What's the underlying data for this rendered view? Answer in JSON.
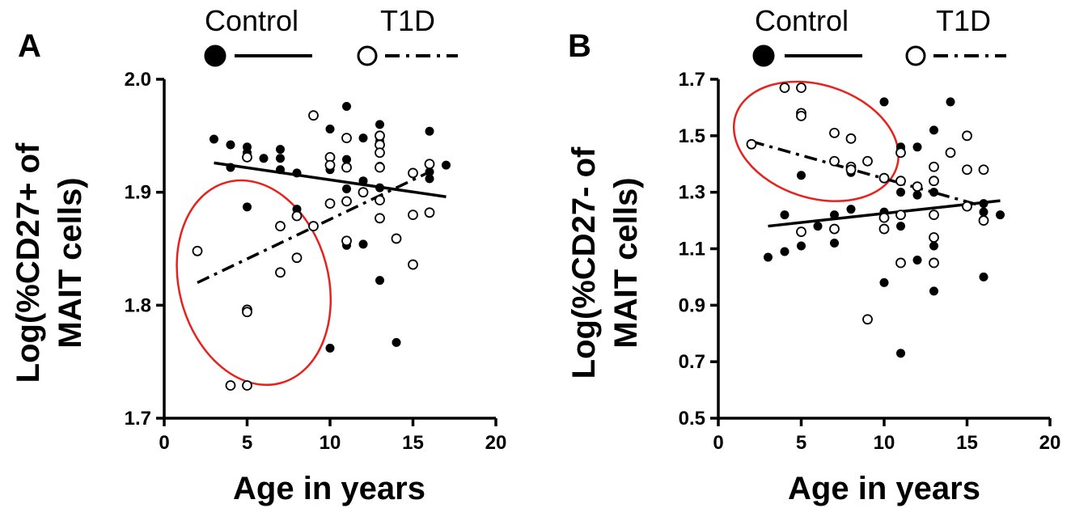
{
  "chart_data": [
    {
      "type": "scatter",
      "panel_label": "A",
      "xlabel": "Age in years",
      "ylabel_lines": [
        "Log(%CD27+ of",
        "MAIT cells)"
      ],
      "xlim": [
        0,
        20
      ],
      "ylim": [
        1.7,
        2.0
      ],
      "x_ticks": [
        "0",
        "5",
        "10",
        "15",
        "20"
      ],
      "y_ticks": [
        "1.7",
        "1.8",
        "1.9",
        "2.0"
      ],
      "legend": [
        {
          "name": "Control",
          "marker": "filled",
          "line": "solid"
        },
        {
          "name": "T1D",
          "marker": "open",
          "line": "dash-dot"
        }
      ],
      "series": [
        {
          "name": "Control",
          "marker": "filled",
          "points": [
            [
              3,
              1.947
            ],
            [
              4,
              1.942
            ],
            [
              4,
              1.922
            ],
            [
              5,
              1.94
            ],
            [
              5,
              1.935
            ],
            [
              5,
              1.887
            ],
            [
              6,
              1.93
            ],
            [
              7,
              1.938
            ],
            [
              7,
              1.93
            ],
            [
              7,
              1.92
            ],
            [
              8,
              1.917
            ],
            [
              8,
              1.885
            ],
            [
              10,
              1.956
            ],
            [
              10,
              1.92
            ],
            [
              10,
              1.762
            ],
            [
              11,
              1.976
            ],
            [
              11,
              1.929
            ],
            [
              11,
              1.903
            ],
            [
              11,
              1.853
            ],
            [
              12,
              1.948
            ],
            [
              12,
              1.91
            ],
            [
              12,
              1.854
            ],
            [
              13,
              1.96
            ],
            [
              13,
              1.945
            ],
            [
              13,
              1.923
            ],
            [
              13,
              1.904
            ],
            [
              13,
              1.822
            ],
            [
              14,
              1.767
            ],
            [
              16,
              1.954
            ],
            [
              16,
              1.918
            ],
            [
              16,
              1.912
            ],
            [
              17,
              1.924
            ]
          ],
          "trend": [
            [
              3,
              1.926
            ],
            [
              17,
              1.896
            ]
          ]
        },
        {
          "name": "T1D",
          "marker": "open",
          "points": [
            [
              2,
              1.848
            ],
            [
              4,
              1.729
            ],
            [
              5,
              1.931
            ],
            [
              5,
              1.796
            ],
            [
              5,
              1.794
            ],
            [
              5,
              1.729
            ],
            [
              7,
              1.87
            ],
            [
              7,
              1.829
            ],
            [
              8,
              1.879
            ],
            [
              8,
              1.842
            ],
            [
              9,
              1.968
            ],
            [
              9,
              1.87
            ],
            [
              10,
              1.931
            ],
            [
              10,
              1.924
            ],
            [
              10,
              1.89
            ],
            [
              11,
              1.948
            ],
            [
              11,
              1.922
            ],
            [
              11,
              1.892
            ],
            [
              11,
              1.857
            ],
            [
              12,
              1.9
            ],
            [
              13,
              1.95
            ],
            [
              13,
              1.942
            ],
            [
              13,
              1.935
            ],
            [
              13,
              1.922
            ],
            [
              13,
              1.893
            ],
            [
              13,
              1.877
            ],
            [
              14,
              1.859
            ],
            [
              15,
              1.917
            ],
            [
              15,
              1.88
            ],
            [
              15,
              1.836
            ],
            [
              16,
              1.925
            ],
            [
              16,
              1.882
            ]
          ],
          "trend": [
            [
              2,
              1.82
            ],
            [
              16,
              1.918
            ]
          ]
        }
      ],
      "annotations": [
        {
          "type": "ellipse",
          "color": "#e8211d",
          "center": [
            5.4,
            1.82
          ],
          "rx_units": 4.5,
          "ry_units": 0.092,
          "rotation_deg": -15
        }
      ]
    },
    {
      "type": "scatter",
      "panel_label": "B",
      "xlabel": "Age in years",
      "ylabel_lines": [
        "Log(%CD27- of",
        "MAIT cells)"
      ],
      "xlim": [
        0,
        20
      ],
      "ylim": [
        0.5,
        1.7
      ],
      "x_ticks": [
        "0",
        "5",
        "10",
        "15",
        "20"
      ],
      "y_ticks": [
        "0.5",
        "0.7",
        "0.9",
        "1.1",
        "1.3",
        "1.5",
        "1.7"
      ],
      "legend": [
        {
          "name": "Control",
          "marker": "filled",
          "line": "solid"
        },
        {
          "name": "T1D",
          "marker": "open",
          "line": "dash-dot"
        }
      ],
      "series": [
        {
          "name": "Control",
          "marker": "filled",
          "points": [
            [
              3,
              1.07
            ],
            [
              4,
              1.22
            ],
            [
              4,
              1.09
            ],
            [
              5,
              1.36
            ],
            [
              5,
              1.16
            ],
            [
              5,
              1.11
            ],
            [
              6,
              1.18
            ],
            [
              7,
              1.22
            ],
            [
              7,
              1.17
            ],
            [
              7,
              1.12
            ],
            [
              8,
              1.37
            ],
            [
              8,
              1.24
            ],
            [
              10,
              1.62
            ],
            [
              10,
              1.23
            ],
            [
              10,
              0.98
            ],
            [
              11,
              1.46
            ],
            [
              11,
              1.45
            ],
            [
              11,
              1.3
            ],
            [
              11,
              1.18
            ],
            [
              11,
              0.73
            ],
            [
              12,
              1.46
            ],
            [
              12,
              1.29
            ],
            [
              12,
              1.06
            ],
            [
              13,
              1.52
            ],
            [
              13,
              1.3
            ],
            [
              13,
              1.11
            ],
            [
              13,
              0.95
            ],
            [
              14,
              1.62
            ],
            [
              16,
              1.26
            ],
            [
              16,
              1.23
            ],
            [
              16,
              1.0
            ],
            [
              17,
              1.22
            ]
          ],
          "trend": [
            [
              3,
              1.18
            ],
            [
              17,
              1.27
            ]
          ]
        },
        {
          "name": "T1D",
          "marker": "open",
          "points": [
            [
              2,
              1.47
            ],
            [
              4,
              1.67
            ],
            [
              5,
              1.67
            ],
            [
              5,
              1.58
            ],
            [
              5,
              1.57
            ],
            [
              5,
              1.16
            ],
            [
              7,
              1.51
            ],
            [
              7,
              1.41
            ],
            [
              7,
              1.17
            ],
            [
              8,
              1.49
            ],
            [
              8,
              1.39
            ],
            [
              8,
              1.38
            ],
            [
              9,
              1.41
            ],
            [
              9,
              0.85
            ],
            [
              10,
              1.35
            ],
            [
              10,
              1.21
            ],
            [
              10,
              1.17
            ],
            [
              11,
              1.44
            ],
            [
              11,
              1.34
            ],
            [
              11,
              1.22
            ],
            [
              11,
              1.05
            ],
            [
              12,
              1.32
            ],
            [
              13,
              1.39
            ],
            [
              13,
              1.34
            ],
            [
              13,
              1.22
            ],
            [
              13,
              1.14
            ],
            [
              13,
              1.05
            ],
            [
              14,
              1.44
            ],
            [
              15,
              1.5
            ],
            [
              15,
              1.38
            ],
            [
              15,
              1.25
            ],
            [
              16,
              1.38
            ],
            [
              16,
              1.2
            ]
          ],
          "trend": [
            [
              2,
              1.48
            ],
            [
              16,
              1.25
            ]
          ]
        }
      ],
      "annotations": [
        {
          "type": "ellipse",
          "color": "#e8211d",
          "center": [
            5.9,
            1.48
          ],
          "rx_units": 5.1,
          "ry_units": 0.2,
          "rotation_deg": 18
        }
      ]
    }
  ]
}
